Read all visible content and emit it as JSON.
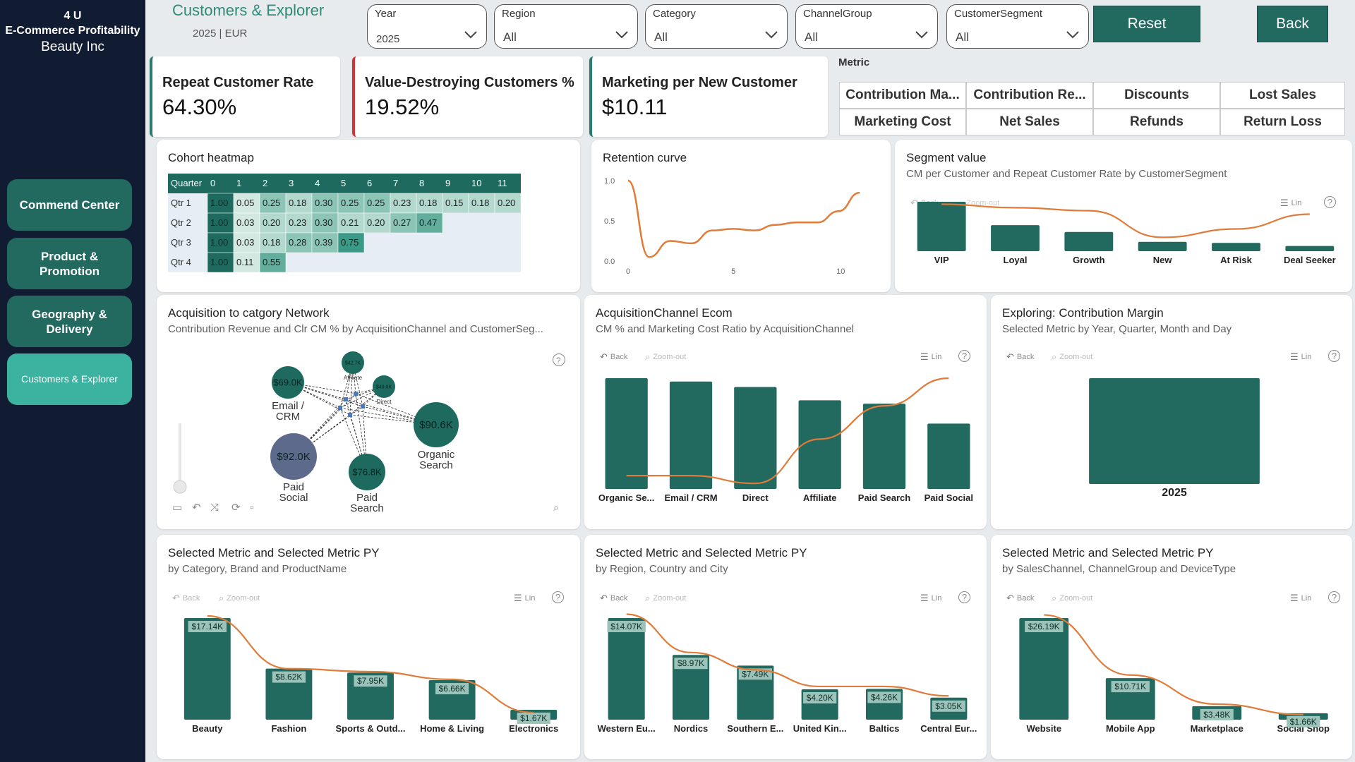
{
  "brand": {
    "line1": "4 U",
    "line2": "E-Commerce Profitability",
    "line3": "Beauty Inc"
  },
  "nav": [
    {
      "label": "Commend Center",
      "active": false
    },
    {
      "label": "Product & Promotion",
      "active": false
    },
    {
      "label": "Geography & Delivery",
      "active": false
    },
    {
      "label": "Customers & Explorer",
      "active": true
    }
  ],
  "header": {
    "title": "Customers & Explorer",
    "subtitle": "2025 | EUR"
  },
  "slicers": [
    {
      "label": "Year",
      "value": "2025"
    },
    {
      "label": "Region",
      "value": "All"
    },
    {
      "label": "Category",
      "value": "All"
    },
    {
      "label": "ChannelGroup",
      "value": "All"
    },
    {
      "label": "CustomerSegment",
      "value": "All"
    }
  ],
  "buttons": {
    "reset": "Reset",
    "back": "Back"
  },
  "kpis": [
    {
      "label": "Repeat Customer Rate",
      "value": "64.30%"
    },
    {
      "label": "Value-Destroying Customers %",
      "value": "19.52%"
    },
    {
      "label": "Marketing per New Customer",
      "value": "$10.11"
    }
  ],
  "metric": {
    "title": "Metric",
    "options": [
      "Contribution Ma...",
      "Contribution Re...",
      "Discounts",
      "Lost Sales",
      "Marketing Cost",
      "Net Sales",
      "Refunds",
      "Return Loss"
    ]
  },
  "toolbar": {
    "back": "Back",
    "zoom_out": "Zoom-out",
    "lin": "Lin",
    "help": "?"
  },
  "colors": {
    "teal": "#22695f",
    "teal_light": "#2a7a6d",
    "orange": "#e07b39",
    "sidebar": "#111c33",
    "accent_active": "#3bb3a0"
  },
  "cohort": {
    "title": "Cohort heatmap",
    "header_label": "Quarter",
    "columns": [
      "0",
      "1",
      "2",
      "3",
      "4",
      "5",
      "6",
      "7",
      "8",
      "9",
      "10",
      "11"
    ],
    "rows": [
      {
        "label": "Qtr 1",
        "values": [
          "1.00",
          "0.05",
          "0.25",
          "0.18",
          "0.30",
          "0.25",
          "0.25",
          "0.23",
          "0.18",
          "0.15",
          "0.18",
          "0.20"
        ]
      },
      {
        "label": "Qtr 2",
        "values": [
          "1.00",
          "0.03",
          "0.20",
          "0.23",
          "0.30",
          "0.21",
          "0.20",
          "0.27",
          "0.47"
        ]
      },
      {
        "label": "Qtr 3",
        "values": [
          "1.00",
          "0.03",
          "0.18",
          "0.28",
          "0.39",
          "0.75"
        ]
      },
      {
        "label": "Qtr 4",
        "values": [
          "1.00",
          "0.11",
          "0.55"
        ]
      }
    ]
  },
  "retention": {
    "title": "Retention curve",
    "y_ticks": [
      "1.0",
      "0.5",
      "0.0"
    ],
    "x_ticks": [
      "0",
      "5",
      "10"
    ],
    "points": [
      [
        0,
        1.0
      ],
      [
        1,
        0.05
      ],
      [
        2,
        0.25
      ],
      [
        3,
        0.22
      ],
      [
        4,
        0.38
      ],
      [
        5,
        0.4
      ],
      [
        6,
        0.38
      ],
      [
        7,
        0.45
      ],
      [
        8,
        0.48
      ],
      [
        9,
        0.48
      ],
      [
        10,
        0.62
      ],
      [
        11,
        0.85
      ]
    ]
  },
  "segment": {
    "title": "Segment value",
    "subtitle": "CM per Customer and Repeat Customer Rate by CustomerSegment",
    "categories": [
      "VIP",
      "Loyal",
      "Growth",
      "New",
      "At Risk",
      "Deal Seeker"
    ],
    "bars": [
      0.95,
      0.5,
      0.37,
      0.18,
      0.16,
      0.1
    ],
    "line": [
      0.95,
      0.88,
      0.82,
      0.28,
      0.45,
      0.75
    ]
  },
  "network": {
    "title": "Acquisition to catgory Network",
    "subtitle": "Contribution Revenue and Clr CM % by AcquisitionChannel and CustomerSeg...",
    "nodes": [
      {
        "value": "$69.0K",
        "label1": "Email /",
        "label2": "CRM"
      },
      {
        "value": "$42.7K",
        "label1": "Affiliate",
        "label2": ""
      },
      {
        "value": "$49.8K",
        "label1": "Direct",
        "label2": ""
      },
      {
        "value": "$90.6K",
        "label1": "Organic",
        "label2": "Search"
      },
      {
        "value": "$92.0K",
        "label1": "Paid",
        "label2": "Social"
      },
      {
        "value": "$76.8K",
        "label1": "Paid",
        "label2": "Search"
      }
    ]
  },
  "acq": {
    "title": "AcquisitionChannel Ecom",
    "subtitle": "CM % and Marketing Cost Ratio by AcquisitionChannel",
    "categories": [
      "Organic Se...",
      "Email / CRM",
      "Direct",
      "Affiliate",
      "Paid Search",
      "Paid Social"
    ],
    "bars": [
      1.0,
      0.97,
      0.92,
      0.8,
      0.77,
      0.59
    ],
    "line": [
      0.12,
      0.12,
      0.05,
      0.45,
      0.75,
      1.0
    ]
  },
  "explore": {
    "title": "Exploring: Contribution Margin",
    "subtitle": "Selected Metric by Year, Quarter, Month and Day",
    "categories": [
      "2025"
    ],
    "bars": [
      1.0
    ]
  },
  "bottom": [
    {
      "title": "Selected Metric and Selected Metric PY",
      "subtitle": "by Category, Brand and ProductName",
      "categories": [
        "Beauty",
        "Fashion",
        "Sports & Outd...",
        "Home & Living",
        "Electronics"
      ],
      "labels": [
        "$17.14K",
        "$8.62K",
        "$7.95K",
        "$6.66K",
        "$1.67K"
      ],
      "values": [
        17.14,
        8.62,
        7.95,
        6.66,
        1.67
      ],
      "py": [
        17.5,
        8.6,
        8.1,
        6.8,
        1.2
      ]
    },
    {
      "title": "Selected Metric and Selected Metric PY",
      "subtitle": "by Region, Country and City",
      "categories": [
        "Western Eu...",
        "Nordics",
        "Southern E...",
        "United Kin...",
        "Baltics",
        "Central Eur..."
      ],
      "labels": [
        "$14.07K",
        "$8.97K",
        "$7.49K",
        "$4.20K",
        "$4.26K",
        "$3.05K"
      ],
      "values": [
        14.07,
        8.97,
        7.49,
        4.2,
        4.26,
        3.05
      ],
      "py": [
        14.6,
        9.3,
        6.9,
        4.6,
        4.6,
        3.3
      ]
    },
    {
      "title": "Selected Metric and Selected Metric PY",
      "subtitle": "by SalesChannel, ChannelGroup and DeviceType",
      "categories": [
        "Website",
        "Mobile App",
        "Marketplace",
        "Social Shop"
      ],
      "labels": [
        "$26.19K",
        "$10.71K",
        "$3.48K",
        "$1.66K"
      ],
      "values": [
        26.19,
        10.71,
        3.48,
        1.66
      ],
      "py": [
        27.0,
        11.5,
        4.0,
        1.3
      ]
    }
  ]
}
